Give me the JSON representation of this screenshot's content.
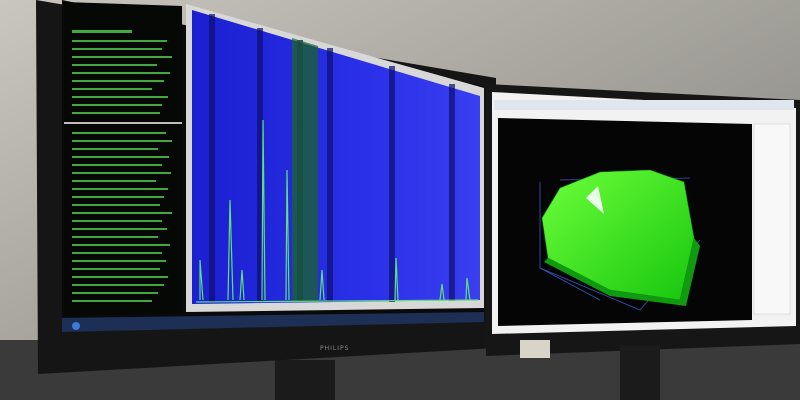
{
  "scene": {
    "left_monitor": {
      "brand": "PHILIPS"
    }
  }
}
